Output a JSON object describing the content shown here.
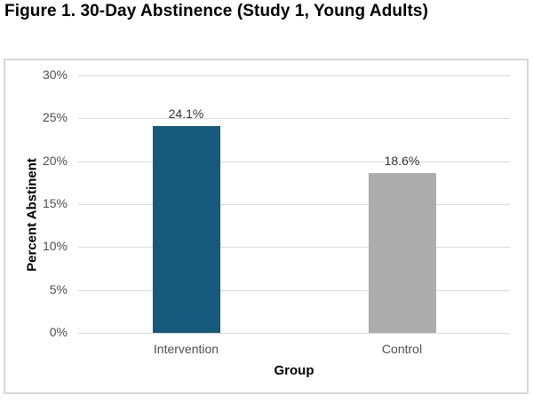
{
  "figure": {
    "title": "Figure 1. 30-Day Abstinence (Study 1, Young Adults)"
  },
  "chart_data": {
    "type": "bar",
    "title": "Figure 1. 30-Day Abstinence (Study 1, Young Adults)",
    "categories": [
      "Intervention",
      "Control"
    ],
    "values": [
      24.1,
      18.6
    ],
    "data_labels": [
      "24.1%",
      "18.6%"
    ],
    "bar_colors": [
      "#15597C",
      "#ACACAC"
    ],
    "xlabel": "Group",
    "ylabel": "Percent Abstinent",
    "ylim": [
      0,
      30
    ],
    "ytick_step": 5,
    "ytick_labels": [
      "0%",
      "5%",
      "10%",
      "15%",
      "20%",
      "25%",
      "30%"
    ],
    "grid": true,
    "legend": "none",
    "colors": {
      "gridline": "#D9D9D9",
      "frame_border": "#D9D9D9",
      "tick_label_text": "#4d4d4d",
      "data_label_text": "#333333",
      "axis_title_text": "#000000",
      "background": "#ffffff"
    }
  }
}
